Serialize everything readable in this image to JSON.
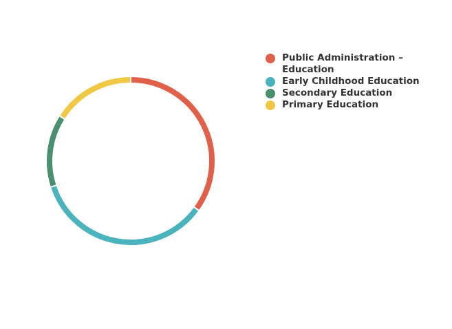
{
  "chart_data": {
    "type": "pie",
    "variant": "donut",
    "title": "",
    "categories": [
      "Public Administration –\nEducation",
      "Early Childhood Education",
      "Secondary Education",
      "Primary Education"
    ],
    "values": [
      35,
      35,
      14,
      16
    ],
    "colors": [
      "#e0604a",
      "#4ab3bb",
      "#4a9070",
      "#f0c844"
    ],
    "legend_position": "right"
  }
}
